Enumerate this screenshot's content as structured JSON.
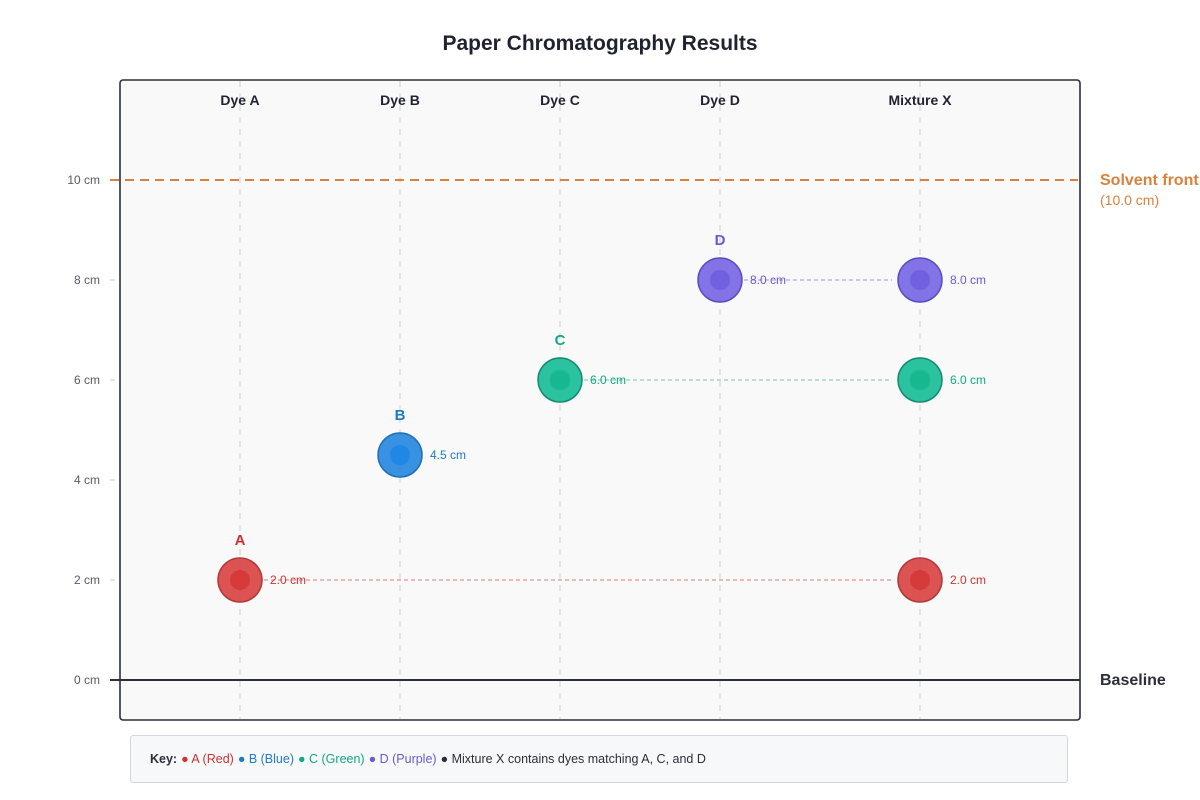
{
  "title": "Paper Chromatography Results",
  "chart_data": {
    "type": "scatter",
    "lanes": [
      "Dye A",
      "Dye B",
      "Dye C",
      "Dye D",
      "Mixture X"
    ],
    "y_unit": "cm",
    "ylim": [
      0,
      10
    ],
    "y_ticks": [
      {
        "value": 0,
        "label": "0 cm"
      },
      {
        "value": 2,
        "label": "2 cm"
      },
      {
        "value": 4,
        "label": "4 cm"
      },
      {
        "value": 6,
        "label": "6 cm"
      },
      {
        "value": 8,
        "label": "8 cm"
      },
      {
        "value": 10,
        "label": "10 cm"
      }
    ],
    "solvent_front": {
      "value": 10,
      "title": "Solvent front",
      "subtitle": "(10.0 cm)",
      "color": "#d9823e"
    },
    "baseline": {
      "value": 0,
      "label": "Baseline",
      "color": "#2b2f3a"
    },
    "spots": [
      {
        "lane": "Dye A",
        "letter": "A",
        "distance": 2.0,
        "label": "2.0 cm",
        "fill": "#d94a4a",
        "core": "#d63a3a",
        "stroke": "#b23a3a",
        "text": "#cc3333"
      },
      {
        "lane": "Dye B",
        "letter": "B",
        "distance": 4.5,
        "label": "4.5 cm",
        "fill": "#2e8be0",
        "core": "#1f88e5",
        "stroke": "#1f6fb3",
        "text": "#1f7bbf"
      },
      {
        "lane": "Dye C",
        "letter": "C",
        "distance": 6.0,
        "label": "6.0 cm",
        "fill": "#20bf9a",
        "core": "#17b890",
        "stroke": "#168a6e",
        "text": "#12a886"
      },
      {
        "lane": "Dye D",
        "letter": "D",
        "distance": 8.0,
        "label": "8.0 cm",
        "fill": "#7b6be6",
        "core": "#7161e0",
        "stroke": "#5b4cc0",
        "text": "#6a5acd"
      },
      {
        "lane": "Mixture X",
        "letter": "",
        "distance": 8.0,
        "label": "8.0 cm",
        "fill": "#7b6be6",
        "core": "#7161e0",
        "stroke": "#5b4cc0",
        "text": "#6a5acd"
      },
      {
        "lane": "Mixture X",
        "letter": "",
        "distance": 6.0,
        "label": "6.0 cm",
        "fill": "#20bf9a",
        "core": "#17b890",
        "stroke": "#168a6e",
        "text": "#12a886"
      },
      {
        "lane": "Mixture X",
        "letter": "",
        "distance": 2.0,
        "label": "2.0 cm",
        "fill": "#d94a4a",
        "core": "#d63a3a",
        "stroke": "#b23a3a",
        "text": "#cc3333"
      }
    ],
    "match_lines": [
      {
        "from": "Dye A",
        "to": "Mixture X",
        "distance": 2.0,
        "color": "#e8a3a8"
      },
      {
        "from": "Dye C",
        "to": "Mixture X",
        "distance": 6.0,
        "color": "#9ed8c9"
      },
      {
        "from": "Dye D",
        "to": "Mixture X",
        "distance": 8.0,
        "color": "#bdb4f0"
      }
    ]
  },
  "key": {
    "title": "Key:",
    "items": [
      {
        "text": "● A (Red)",
        "color": "#cc3333"
      },
      {
        "text": "● B (Blue)",
        "color": "#1f7bbf"
      },
      {
        "text": "● C (Green)",
        "color": "#12a886"
      },
      {
        "text": "● D (Purple)",
        "color": "#6a5acd"
      },
      {
        "text": "● Mixture X contains dyes matching A, C, and D",
        "color": "#2b2f3a"
      }
    ]
  }
}
